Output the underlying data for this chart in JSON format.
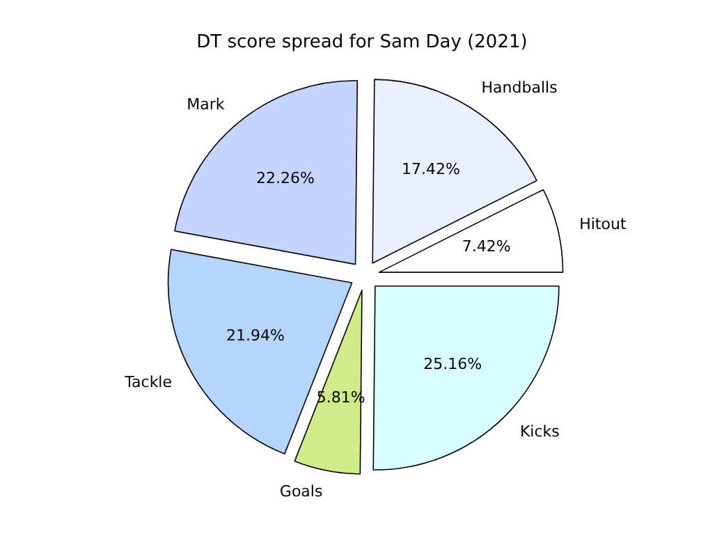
{
  "chart_data": {
    "type": "pie",
    "title": "DT score spread for Sam Day (2021)",
    "categories": [
      "Hitout",
      "Handballs",
      "Mark",
      "Tackle",
      "Goals",
      "Kicks"
    ],
    "values": [
      7.42,
      17.42,
      22.26,
      21.94,
      5.81,
      25.16
    ],
    "value_labels": [
      "7.42%",
      "17.42%",
      "22.26%",
      "21.94%",
      "5.81%",
      "25.16%"
    ],
    "colors": [
      "#ffffff",
      "#eaf0ff",
      "#c5d5ff",
      "#b5d5ff",
      "#d0eb8a",
      "#d9ffff"
    ]
  }
}
